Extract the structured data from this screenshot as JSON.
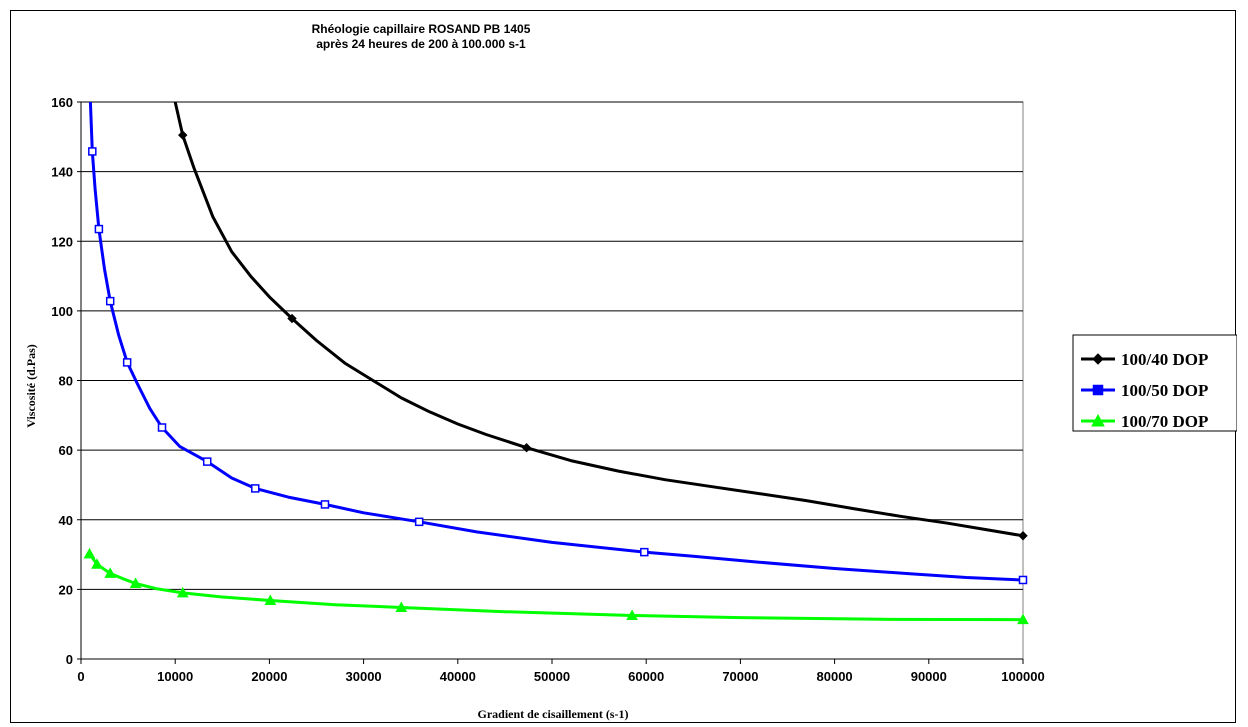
{
  "chart_data": {
    "type": "line",
    "title": "Rhéologie capillaire ROSAND PB 1405",
    "subtitle": "après 24 heures de 200 à 100.000 s-1",
    "xlabel": "Gradient de cisaillement (s-1)",
    "ylabel": "Viscosité (d.Pas)",
    "xlim": [
      0,
      100000
    ],
    "ylim": [
      0,
      160
    ],
    "xticks": [
      "0",
      "10000",
      "20000",
      "30000",
      "40000",
      "50000",
      "60000",
      "70000",
      "80000",
      "90000",
      "100000"
    ],
    "yticks": [
      "0",
      "20",
      "40",
      "60",
      "80",
      "100",
      "120",
      "140",
      "160"
    ],
    "grid": "horizontal",
    "legend_position": "right",
    "series": [
      {
        "name": "100/40 DOP",
        "color": "#000000",
        "marker": "diamond",
        "markers": [
          [
            10800,
            150.5
          ],
          [
            22400,
            97.8
          ],
          [
            47300,
            60.7
          ],
          [
            100000,
            35.4
          ]
        ],
        "curve": [
          [
            10000,
            160
          ],
          [
            10800,
            150.5
          ],
          [
            12000,
            141
          ],
          [
            14000,
            127
          ],
          [
            16000,
            117
          ],
          [
            18000,
            110
          ],
          [
            20000,
            104
          ],
          [
            22400,
            97.8
          ],
          [
            25000,
            91.5
          ],
          [
            28000,
            85
          ],
          [
            31000,
            80
          ],
          [
            34000,
            75
          ],
          [
            37000,
            71
          ],
          [
            40000,
            67.5
          ],
          [
            43000,
            64.5
          ],
          [
            47300,
            60.7
          ],
          [
            52000,
            57
          ],
          [
            57000,
            54
          ],
          [
            62000,
            51.5
          ],
          [
            67000,
            49.5
          ],
          [
            72000,
            47.5
          ],
          [
            77000,
            45.5
          ],
          [
            82000,
            43.2
          ],
          [
            87000,
            41
          ],
          [
            92000,
            39
          ],
          [
            96000,
            37.2
          ],
          [
            100000,
            35.4
          ]
        ]
      },
      {
        "name": "100/50 DOP",
        "color": "#0000FF",
        "marker": "square",
        "markers": [
          [
            1200,
            145.8
          ],
          [
            1900,
            123.5
          ],
          [
            3100,
            102.8
          ],
          [
            4900,
            85.2
          ],
          [
            8600,
            66.5
          ],
          [
            13400,
            56.7
          ],
          [
            18500,
            49.0
          ],
          [
            25900,
            44.4
          ],
          [
            35900,
            39.4
          ],
          [
            59800,
            30.7
          ],
          [
            100000,
            22.7
          ]
        ],
        "curve": [
          [
            1000,
            160
          ],
          [
            1200,
            145.8
          ],
          [
            1500,
            135
          ],
          [
            1900,
            123.5
          ],
          [
            2500,
            112
          ],
          [
            3100,
            102.8
          ],
          [
            4000,
            93
          ],
          [
            4900,
            85.2
          ],
          [
            6000,
            79
          ],
          [
            7300,
            72
          ],
          [
            8600,
            66.5
          ],
          [
            10500,
            61
          ],
          [
            13400,
            56.7
          ],
          [
            16000,
            52
          ],
          [
            18500,
            49.0
          ],
          [
            22000,
            46.5
          ],
          [
            25900,
            44.4
          ],
          [
            30000,
            42
          ],
          [
            35900,
            39.4
          ],
          [
            42000,
            36.5
          ],
          [
            50000,
            33.5
          ],
          [
            59800,
            30.7
          ],
          [
            65000,
            29.5
          ],
          [
            72000,
            27.8
          ],
          [
            80000,
            26
          ],
          [
            88000,
            24.5
          ],
          [
            94000,
            23.4
          ],
          [
            100000,
            22.7
          ]
        ]
      },
      {
        "name": "100/70 DOP",
        "color": "#00FF00",
        "marker": "triangle",
        "markers": [
          [
            900,
            30.2
          ],
          [
            1700,
            27.2
          ],
          [
            3100,
            24.6
          ],
          [
            5800,
            21.7
          ],
          [
            10800,
            19.0
          ],
          [
            20100,
            16.8
          ],
          [
            34000,
            14.8
          ],
          [
            58500,
            12.5
          ],
          [
            100000,
            11.3
          ]
        ],
        "curve": [
          [
            900,
            30.2
          ],
          [
            1700,
            27.2
          ],
          [
            3100,
            24.6
          ],
          [
            4500,
            23
          ],
          [
            5800,
            21.7
          ],
          [
            8000,
            20.2
          ],
          [
            10800,
            19.0
          ],
          [
            15000,
            17.8
          ],
          [
            20100,
            16.8
          ],
          [
            27000,
            15.6
          ],
          [
            34000,
            14.8
          ],
          [
            45000,
            13.6
          ],
          [
            58500,
            12.5
          ],
          [
            70000,
            11.9
          ],
          [
            85000,
            11.4
          ],
          [
            100000,
            11.3
          ]
        ]
      }
    ]
  }
}
